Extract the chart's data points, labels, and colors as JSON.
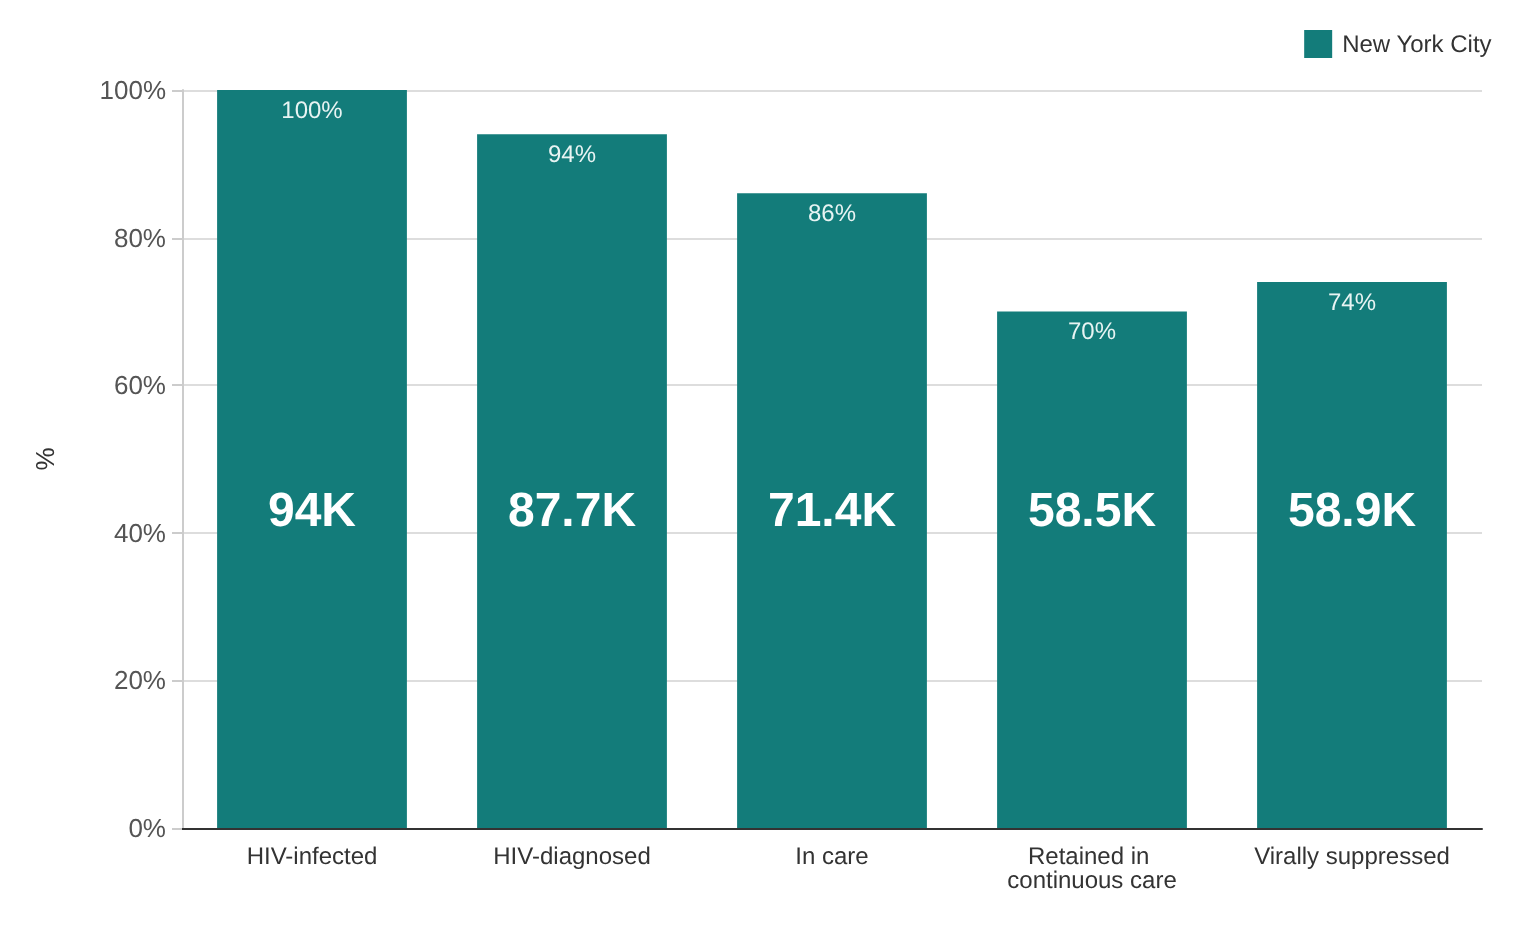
{
  "chart_data": {
    "type": "bar",
    "ylabel": "%",
    "categories": [
      "HIV-infected",
      "HIV-diagnosed",
      "In care",
      "Retained in continuous care",
      "Virally suppressed"
    ],
    "series": [
      {
        "name": "New York City",
        "color": "#137c7a",
        "values": [
          100,
          94,
          86,
          70,
          74
        ],
        "value_labels": [
          "100%",
          "94%",
          "86%",
          "70%",
          "74%"
        ]
      }
    ],
    "ylim": [
      0,
      100
    ],
    "yticks": [
      {
        "value": 0,
        "label": "0%"
      },
      {
        "value": 20,
        "label": "20%"
      },
      {
        "value": 40,
        "label": "40%"
      },
      {
        "value": 60,
        "label": "60%"
      },
      {
        "value": 80,
        "label": "80%"
      },
      {
        "value": 100,
        "label": "100%"
      }
    ],
    "grid": "y",
    "legend": "top right",
    "annotations": [
      "94K",
      "87.7K",
      "71.4K",
      "58.5K",
      "58.9K"
    ]
  }
}
